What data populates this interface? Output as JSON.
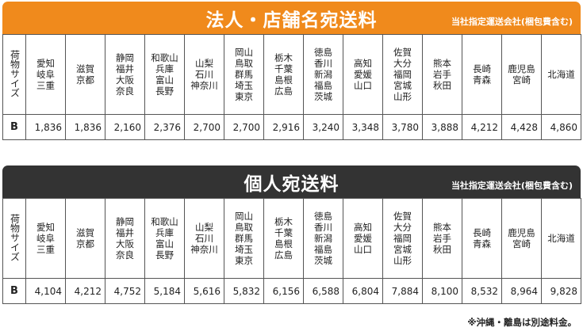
{
  "sections": [
    {
      "title": "法人・店舗名宛送料",
      "note": "当社指定運送会社(梱包費含む)",
      "row_label": "荷物サイズ",
      "size": "B",
      "regions": [
        [
          "愛知",
          "岐阜",
          "三重"
        ],
        [
          "滋賀",
          "京都"
        ],
        [
          "静岡",
          "福井",
          "大阪",
          "奈良"
        ],
        [
          "和歌山",
          "兵庫",
          "富山",
          "長野"
        ],
        [
          "山梨",
          "石川",
          "神奈川"
        ],
        [
          "岡山",
          "鳥取",
          "群馬",
          "埼玉",
          "東京"
        ],
        [
          "栃木",
          "千葉",
          "島根",
          "広島"
        ],
        [
          "徳島",
          "香川",
          "新潟",
          "福島",
          "茨城"
        ],
        [
          "高知",
          "愛媛",
          "山口"
        ],
        [
          "佐賀",
          "大分",
          "福岡",
          "宮城",
          "山形"
        ],
        [
          "熊本",
          "岩手",
          "秋田"
        ],
        [
          "長崎",
          "青森"
        ],
        [
          "鹿児島",
          "宮崎"
        ],
        [
          "北海道"
        ]
      ],
      "prices": [
        "1,836",
        "1,836",
        "2,160",
        "2,376",
        "2,700",
        "2,700",
        "2,916",
        "3,240",
        "3,348",
        "3,780",
        "3,888",
        "4,212",
        "4,428",
        "4,860"
      ]
    },
    {
      "title": "個人宛送料",
      "note": "当社指定運送会社(梱包費含む)",
      "row_label": "荷物サイズ",
      "size": "B",
      "regions": [
        [
          "愛知",
          "岐阜",
          "三重"
        ],
        [
          "滋賀",
          "京都"
        ],
        [
          "静岡",
          "福井",
          "大阪",
          "奈良"
        ],
        [
          "和歌山",
          "兵庫",
          "富山",
          "長野"
        ],
        [
          "山梨",
          "石川",
          "神奈川"
        ],
        [
          "岡山",
          "鳥取",
          "群馬",
          "埼玉",
          "東京"
        ],
        [
          "栃木",
          "千葉",
          "島根",
          "広島"
        ],
        [
          "徳島",
          "香川",
          "新潟",
          "福島",
          "茨城"
        ],
        [
          "高知",
          "愛媛",
          "山口"
        ],
        [
          "佐賀",
          "大分",
          "福岡",
          "宮城",
          "山形"
        ],
        [
          "熊本",
          "岩手",
          "秋田"
        ],
        [
          "長崎",
          "青森"
        ],
        [
          "鹿児島",
          "宮崎"
        ],
        [
          "北海道"
        ]
      ],
      "prices": [
        "4,104",
        "4,212",
        "4,752",
        "5,184",
        "5,616",
        "5,832",
        "6,156",
        "6,588",
        "6,804",
        "7,884",
        "8,100",
        "8,532",
        "8,964",
        "9,828"
      ]
    }
  ],
  "footnote": "※沖縄・離島は別途料金。",
  "colors": {
    "corporate_banner": "#f08a1c",
    "individual_banner": "#333333",
    "banner_text": "#ffffff"
  }
}
